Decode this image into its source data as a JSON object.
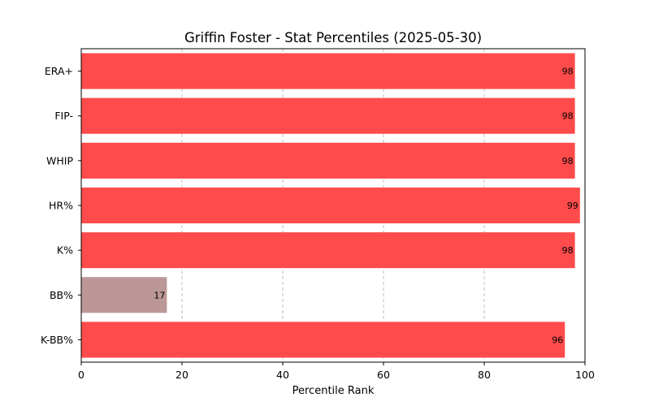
{
  "chart_data": {
    "type": "bar",
    "orientation": "horizontal",
    "title": "Griffin Foster - Stat Percentiles (2025-05-30)",
    "xlabel": "Percentile Rank",
    "ylabel": "",
    "xlim": [
      0,
      100
    ],
    "xticks": [
      0,
      20,
      40,
      60,
      80,
      100
    ],
    "grid": "x, dashed",
    "categories": [
      "ERA+",
      "FIP-",
      "WHIP",
      "HR%",
      "K%",
      "BB%",
      "K-BB%"
    ],
    "values": [
      98,
      98,
      98,
      99,
      98,
      17,
      96
    ],
    "colors": [
      "#ff4b4b",
      "#ff4b4b",
      "#ff4b4b",
      "#ff4b4b",
      "#ff4b4b",
      "#bc9797",
      "#ff4b4b"
    ]
  }
}
